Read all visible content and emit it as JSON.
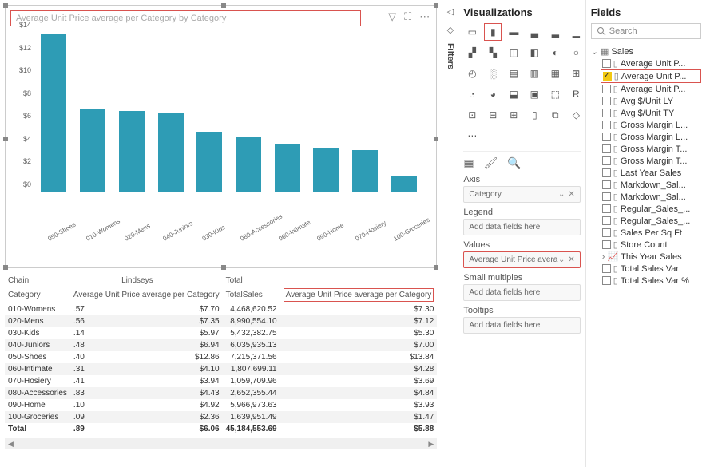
{
  "chart": {
    "title": "Average Unit Price average per Category by Category",
    "bar_color": "#2e9cb5",
    "ylim": [
      0,
      14
    ],
    "ytick_step": 2,
    "yprefix": "$",
    "categories": [
      "050-Shoes",
      "010-Womens",
      "020-Mens",
      "040-Juniors",
      "030-Kids",
      "080-Accessories",
      "060-Intimate",
      "090-Home",
      "070-Hosiery",
      "100-Groceries"
    ],
    "values": [
      13.84,
      7.3,
      7.12,
      7.0,
      5.3,
      4.84,
      4.28,
      3.93,
      3.69,
      1.47
    ]
  },
  "table": {
    "h1a": "Chain",
    "h1b": "Lindseys",
    "h1c": "Total",
    "h2a": "Category",
    "h2b": "Average Unit Price average per Category",
    "h2c": "TotalSales",
    "h2d": "Average Unit Price average per Category",
    "rows": [
      {
        "cat": "010-Womens",
        "v1": ".57",
        "v2": "$7.70",
        "ts": "4,468,620.52",
        "v3": "$7.30"
      },
      {
        "cat": "020-Mens",
        "v1": ".56",
        "v2": "$7.35",
        "ts": "8,990,554.10",
        "v3": "$7.12"
      },
      {
        "cat": "030-Kids",
        "v1": ".14",
        "v2": "$5.97",
        "ts": "5,432,382.75",
        "v3": "$5.30"
      },
      {
        "cat": "040-Juniors",
        "v1": ".48",
        "v2": "$6.94",
        "ts": "6,035,935.13",
        "v3": "$7.00"
      },
      {
        "cat": "050-Shoes",
        "v1": ".40",
        "v2": "$12.86",
        "ts": "7,215,371.56",
        "v3": "$13.84"
      },
      {
        "cat": "060-Intimate",
        "v1": ".31",
        "v2": "$4.10",
        "ts": "1,807,699.11",
        "v3": "$4.28"
      },
      {
        "cat": "070-Hosiery",
        "v1": ".41",
        "v2": "$3.94",
        "ts": "1,059,709.96",
        "v3": "$3.69"
      },
      {
        "cat": "080-Accessories",
        "v1": ".83",
        "v2": "$4.43",
        "ts": "2,652,355.44",
        "v3": "$4.84"
      },
      {
        "cat": "090-Home",
        "v1": ".10",
        "v2": "$4.92",
        "ts": "5,966,973.63",
        "v3": "$3.93"
      },
      {
        "cat": "100-Groceries",
        "v1": ".09",
        "v2": "$2.36",
        "ts": "1,639,951.49",
        "v3": "$1.47"
      }
    ],
    "total": {
      "cat": "Total",
      "v1": ".89",
      "v2": "$6.06",
      "ts": "45,184,553.69",
      "v3": "$5.88"
    }
  },
  "viz": {
    "title": "Visualizations",
    "axis_lbl": "Axis",
    "axis_val": "Category",
    "legend_lbl": "Legend",
    "legend_ph": "Add data fields here",
    "values_lbl": "Values",
    "values_val": "Average Unit Price avera",
    "sm_lbl": "Small multiples",
    "sm_ph": "Add data fields here",
    "tt_lbl": "Tooltips",
    "tt_ph": "Add data fields here"
  },
  "fields": {
    "title": "Fields",
    "search_ph": "Search",
    "table": "Sales",
    "items": [
      "Average Unit P...",
      "Average Unit P...",
      "Average Unit P...",
      "Avg $/Unit LY",
      "Avg $/Unit TY",
      "Gross Margin L...",
      "Gross Margin L...",
      "Gross Margin T...",
      "Gross Margin T...",
      "Last Year Sales",
      "Markdown_Sal...",
      "Markdown_Sal...",
      "Regular_Sales_...",
      "Regular_Sales_...",
      "Sales Per Sq Ft",
      "Store Count",
      "This Year Sales",
      "Total Sales Var",
      "Total Sales Var %"
    ],
    "checked_idx": 1,
    "highlight_idx": 1,
    "chevron_idx": 16
  },
  "filters": "Filters"
}
